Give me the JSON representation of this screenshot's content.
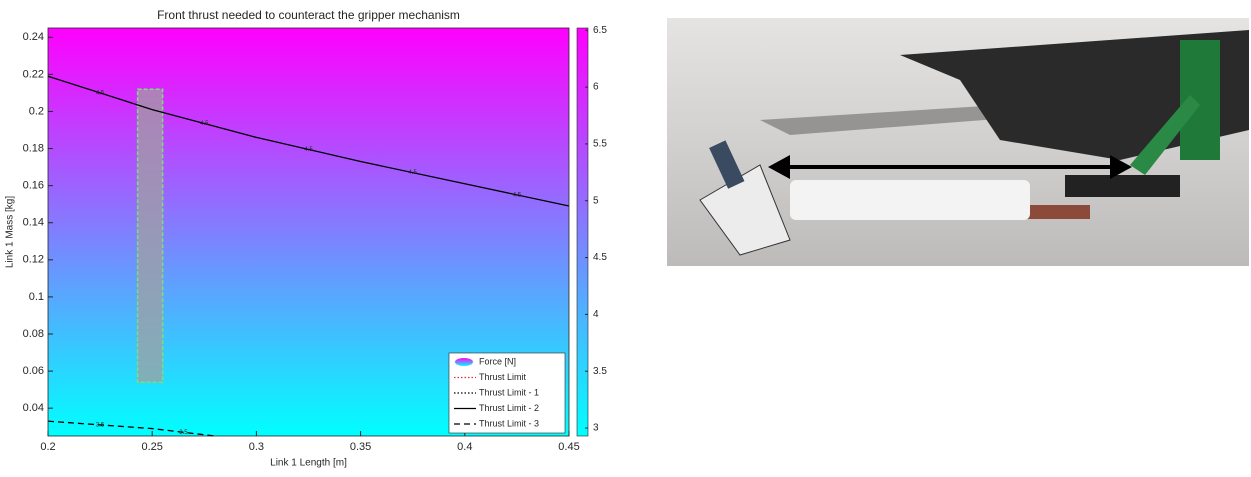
{
  "chart_data": {
    "type": "heatmap-contour",
    "title": "Front thrust needed to counteract the gripper mechanism",
    "x_label": "Link 1 Length [m]",
    "y_label": "Link 1 Mass [kg]",
    "xlim": [
      0.2,
      0.45
    ],
    "ylim": [
      0.025,
      0.245
    ],
    "xticks": [
      0.2,
      0.25,
      0.3,
      0.35,
      0.4,
      0.45
    ],
    "yticks": [
      0.04,
      0.06,
      0.08,
      0.1,
      0.12,
      0.14,
      0.16,
      0.18,
      0.2,
      0.22,
      0.24
    ],
    "colorbar": {
      "lim": [
        2.93,
        6.52
      ],
      "ticks": [
        3,
        3.5,
        4,
        4.5,
        5,
        5.5,
        6,
        6.5
      ],
      "colors": [
        "#00ffff",
        "#ff00ff"
      ]
    },
    "field_name": "Force [N]",
    "region": {
      "x": [
        0.243,
        0.255
      ],
      "y": [
        0.054,
        0.212
      ],
      "color": "#a0a0a0",
      "edge": "#7fdc7f"
    },
    "series": [
      {
        "name": "Thrust Limit",
        "color": "#e03030",
        "style": "dotted"
      },
      {
        "name": "Thrust Limit - 1",
        "color": "#000000",
        "style": "dotted"
      },
      {
        "name": "Thrust Limit - 2",
        "color": "#000000",
        "style": "solid",
        "level": 4.5,
        "x": [
          0.2,
          0.25,
          0.3,
          0.35,
          0.4,
          0.45
        ],
        "y": [
          0.219,
          0.201,
          0.186,
          0.173,
          0.161,
          0.149
        ]
      },
      {
        "name": "Thrust Limit - 3",
        "color": "#000000",
        "style": "dashed",
        "level": 3.5,
        "x": [
          0.2,
          0.25,
          0.28
        ],
        "y": [
          0.033,
          0.029,
          0.025
        ]
      }
    ]
  }
}
